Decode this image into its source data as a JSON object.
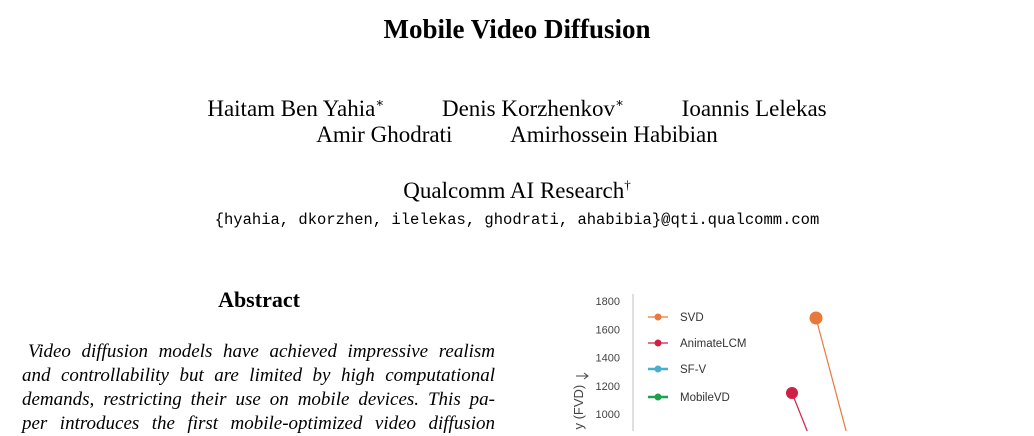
{
  "paper": {
    "title": "Mobile Video Diffusion",
    "authors_row1": [
      {
        "name": "Haitam Ben Yahia",
        "mark": "∗"
      },
      {
        "name": "Denis Korzhenkov",
        "mark": "∗"
      },
      {
        "name": "Ioannis Lelekas",
        "mark": ""
      }
    ],
    "authors_row2": [
      {
        "name": "Amir Ghodrati",
        "mark": ""
      },
      {
        "name": "Amirhossein Habibian",
        "mark": ""
      }
    ],
    "affiliation": "Qualcomm AI Research",
    "affiliation_mark": "†",
    "emails": "{hyahia, dkorzhen, ilelekas, ghodrati, ahabibia}@qti.qualcomm.com",
    "abstract_heading": "Abstract",
    "abstract_lines": [
      "Video diffusion models have achieved impressive realism",
      "and controllability but are limited by high computational",
      "demands, restricting their use on mobile devices. This pa-",
      "per introduces the first mobile-optimized video diffusion"
    ]
  },
  "chart_data": {
    "type": "scatter",
    "ylabel": "y (FVD)",
    "ylim_visible": [
      1000,
      1800
    ],
    "yticks": [
      1800,
      1600,
      1400,
      1200,
      1000
    ],
    "legend_position": "top-left",
    "series": [
      {
        "name": "SVD",
        "color": "#e8793a",
        "points": [
          {
            "y": 1680
          }
        ]
      },
      {
        "name": "AnimateLCM",
        "color": "#d01f45",
        "points": [
          {
            "y": 1150
          }
        ]
      },
      {
        "name": "SF-V",
        "color": "#4aaed0",
        "points": []
      },
      {
        "name": "MobileVD",
        "color": "#1aa34a",
        "points": []
      }
    ]
  }
}
